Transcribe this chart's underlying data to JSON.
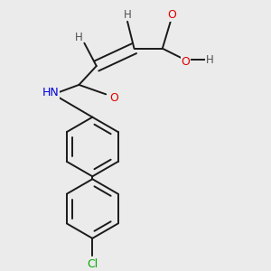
{
  "bg_color": "#ebebeb",
  "bond_color": "#1a1a1a",
  "atom_colors": {
    "O": "#e00000",
    "N": "#0000e0",
    "Cl": "#00aa00",
    "H": "#505050",
    "C": "#1a1a1a"
  }
}
